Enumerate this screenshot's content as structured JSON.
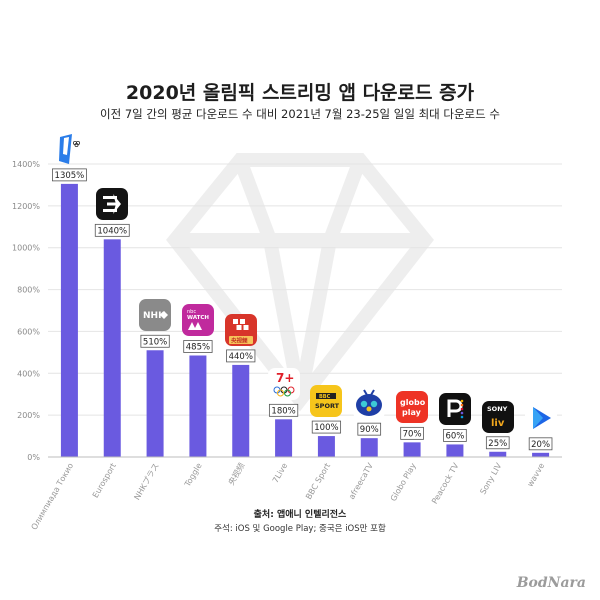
{
  "header": {
    "title": "2020년 올림픽 스트리밍 앱 다운로드 증가",
    "subtitle": "이전 7일 간의 평균 다운로드 수 대비 2021년 7월 23-25일 일일 최대 다운로드 수"
  },
  "footer": {
    "source": "출처: 앱애니 인텔리전스",
    "note": "주석: iOS 및 Google Play; 중국은 iOS만 포함",
    "brand": "BodNara"
  },
  "icon_labels": {
    "nhk": "NHK",
    "nbc_top": "nbc",
    "nbc_mid": "WATCH",
    "bbc_top": "BBC",
    "bbc_bottom": "SPORT",
    "globo_top": "globo",
    "globo_bottom": "play",
    "sony_top": "SONY",
    "sony_bottom": "liv",
    "seven": "7+",
    "cctv": "央视频"
  },
  "chart_data": {
    "type": "bar",
    "title": "2020년 올림픽 스트리밍 앱 다운로드 증가",
    "subtitle": "이전 7일 간의 평균 다운로드 수 대비 2021년 7월 23-25일 일일 최대 다운로드 수",
    "categories": [
      "Олимпиада Токио",
      "Eurosport",
      "NHKプラス",
      "Toggle",
      "央视频",
      "7Live",
      "BBC Sport",
      "afreecaTV",
      "Globo Play",
      "Peacock TV",
      "Sony LIV",
      "wavve"
    ],
    "values": [
      1305,
      1040,
      510,
      485,
      440,
      180,
      100,
      90,
      70,
      60,
      25,
      20
    ],
    "value_labels": [
      "1305%",
      "1040%",
      "510%",
      "485%",
      "440%",
      "180%",
      "100%",
      "90%",
      "70%",
      "60%",
      "25%",
      "20%"
    ],
    "yticks": [
      0,
      200,
      400,
      600,
      800,
      1000,
      1200,
      1400
    ],
    "ytick_labels": [
      "0%",
      "200%",
      "400%",
      "600%",
      "800%",
      "1000%",
      "1200%",
      "1400%"
    ],
    "ylim": [
      0,
      1400
    ],
    "grid": true,
    "bar_color": "#6a5ae0",
    "grid_color": "#e4e4e4",
    "icons": [
      "olympic-one-icon",
      "eurosport-icon",
      "nhk-plus-icon",
      "nbc-watch-icon",
      "cctv-video-icon",
      "seven-plus-icon",
      "bbc-sport-icon",
      "afreeca-tv-icon",
      "globo-play-icon",
      "peacock-icon",
      "sony-liv-icon",
      "wavve-icon"
    ]
  }
}
